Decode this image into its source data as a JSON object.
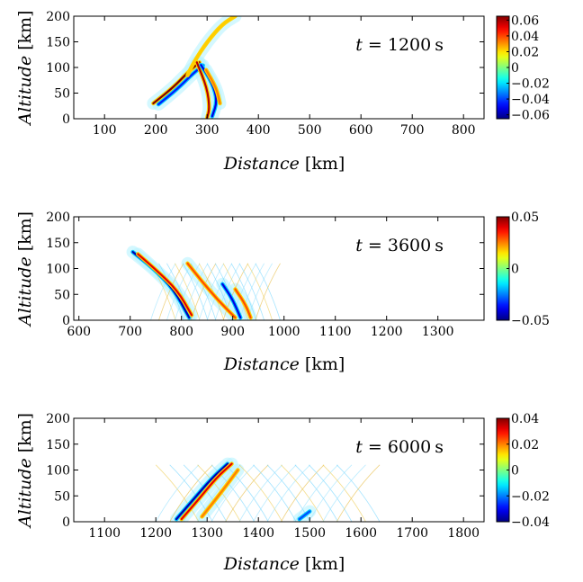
{
  "figure": {
    "description_type": "three stacked wave-field snapshots with colorbars"
  },
  "chart_data": [
    {
      "type": "heatmap",
      "annotation": {
        "prefix": "t",
        "equals": " = ",
        "value": "1200",
        "unit": "s"
      },
      "xlabel": {
        "var": "Distance",
        "unit": "[km]"
      },
      "ylabel": {
        "var": "Altitude",
        "unit": "[km]"
      },
      "xlim": [
        40,
        840
      ],
      "ylim": [
        0,
        200
      ],
      "xticks": [
        100,
        200,
        300,
        400,
        500,
        600,
        700,
        800
      ],
      "yticks": [
        0,
        50,
        100,
        150,
        200
      ],
      "colorbar": {
        "range": [
          -0.065,
          0.065
        ],
        "ticks": [
          0.06,
          0.04,
          0.02,
          0,
          -0.02,
          -0.04,
          -0.06
        ],
        "labels": [
          "0.06",
          "0.04",
          "0.02",
          "0",
          "−0.02",
          "−0.04",
          "−0.06"
        ]
      },
      "features": [
        {
          "kind": "front",
          "points": [
            [
              195,
              30
            ],
            [
              235,
              62
            ],
            [
              262,
              90
            ],
            [
              285,
              110
            ]
          ],
          "amp": 1.0
        },
        {
          "kind": "front",
          "points": [
            [
              205,
              28
            ],
            [
              242,
              58
            ],
            [
              270,
              86
            ],
            [
              292,
              104
            ]
          ],
          "amp": -0.7
        },
        {
          "kind": "front",
          "points": [
            [
              262,
              85
            ],
            [
              275,
              112
            ],
            [
              300,
              150
            ],
            [
              330,
              185
            ],
            [
              355,
              200
            ]
          ],
          "amp": 0.35
        },
        {
          "kind": "front",
          "points": [
            [
              280,
              110
            ],
            [
              300,
              60
            ],
            [
              305,
              20
            ],
            [
              300,
              2
            ]
          ],
          "amp": 0.9
        },
        {
          "kind": "front",
          "points": [
            [
              288,
              105
            ],
            [
              310,
              70
            ],
            [
              320,
              35
            ],
            [
              310,
              5
            ]
          ],
          "amp": -0.8
        },
        {
          "kind": "front",
          "points": [
            [
              298,
              95
            ],
            [
              318,
              60
            ],
            [
              325,
              30
            ]
          ],
          "amp": 0.5
        }
      ]
    },
    {
      "type": "heatmap",
      "annotation": {
        "prefix": "t",
        "equals": " = ",
        "value": "3600",
        "unit": "s"
      },
      "xlabel": {
        "var": "Distance",
        "unit": "[km]"
      },
      "ylabel": {
        "var": "Altitude",
        "unit": "[km]"
      },
      "xlim": [
        590,
        1390
      ],
      "ylim": [
        0,
        200
      ],
      "xticks": [
        600,
        700,
        800,
        900,
        1000,
        1100,
        1200,
        1300
      ],
      "yticks": [
        0,
        50,
        100,
        150,
        200
      ],
      "colorbar": {
        "range": [
          -0.05,
          0.05
        ],
        "ticks": [
          0.05,
          0,
          -0.05
        ],
        "labels": [
          "0.05",
          "0",
          "−0.05"
        ]
      },
      "features": [
        {
          "kind": "front",
          "points": [
            [
              705,
              132
            ],
            [
              745,
              100
            ],
            [
              785,
              60
            ],
            [
              815,
              5
            ]
          ],
          "amp": -0.9
        },
        {
          "kind": "front",
          "points": [
            [
              715,
              128
            ],
            [
              752,
              96
            ],
            [
              792,
              58
            ],
            [
              820,
              10
            ]
          ],
          "amp": 0.8
        },
        {
          "kind": "front",
          "points": [
            [
              812,
              110
            ],
            [
              840,
              75
            ],
            [
              870,
              40
            ],
            [
              905,
              5
            ]
          ],
          "amp": 0.6
        },
        {
          "kind": "front",
          "points": [
            [
              880,
              70
            ],
            [
              900,
              40
            ],
            [
              915,
              5
            ]
          ],
          "amp": -0.8
        },
        {
          "kind": "front",
          "points": [
            [
              905,
              60
            ],
            [
              925,
              30
            ],
            [
              935,
              5
            ]
          ],
          "amp": 0.6
        },
        {
          "kind": "mesh",
          "x0": 740,
          "x1": 960,
          "ytop": 110
        }
      ]
    },
    {
      "type": "heatmap",
      "annotation": {
        "prefix": "t",
        "equals": " = ",
        "value": "6000",
        "unit": "s"
      },
      "xlabel": {
        "var": "Distance",
        "unit": "[km]"
      },
      "ylabel": {
        "var": "Altitude",
        "unit": "[km]"
      },
      "xlim": [
        1040,
        1840
      ],
      "ylim": [
        0,
        200
      ],
      "xticks": [
        1100,
        1200,
        1300,
        1400,
        1500,
        1600,
        1700,
        1800
      ],
      "yticks": [
        0,
        50,
        100,
        150,
        200
      ],
      "colorbar": {
        "range": [
          -0.04,
          0.04
        ],
        "ticks": [
          0.04,
          0.02,
          0,
          -0.02,
          -0.04
        ],
        "labels": [
          "0.04",
          "0.02",
          "0",
          "−0.02",
          "−0.04"
        ]
      },
      "features": [
        {
          "kind": "front",
          "points": [
            [
              1240,
              5
            ],
            [
              1275,
              45
            ],
            [
              1310,
              85
            ],
            [
              1340,
              112
            ]
          ],
          "amp": -0.9
        },
        {
          "kind": "front",
          "points": [
            [
              1250,
              5
            ],
            [
              1285,
              45
            ],
            [
              1318,
              85
            ],
            [
              1348,
              112
            ]
          ],
          "amp": 0.8
        },
        {
          "kind": "front",
          "points": [
            [
              1290,
              10
            ],
            [
              1330,
              60
            ],
            [
              1360,
              100
            ]
          ],
          "amp": 0.5
        },
        {
          "kind": "front",
          "points": [
            [
              1480,
              5
            ],
            [
              1500,
              20
            ]
          ],
          "amp": -0.6
        },
        {
          "kind": "mesh",
          "x0": 1200,
          "x1": 1580,
          "ytop": 110
        }
      ]
    }
  ]
}
